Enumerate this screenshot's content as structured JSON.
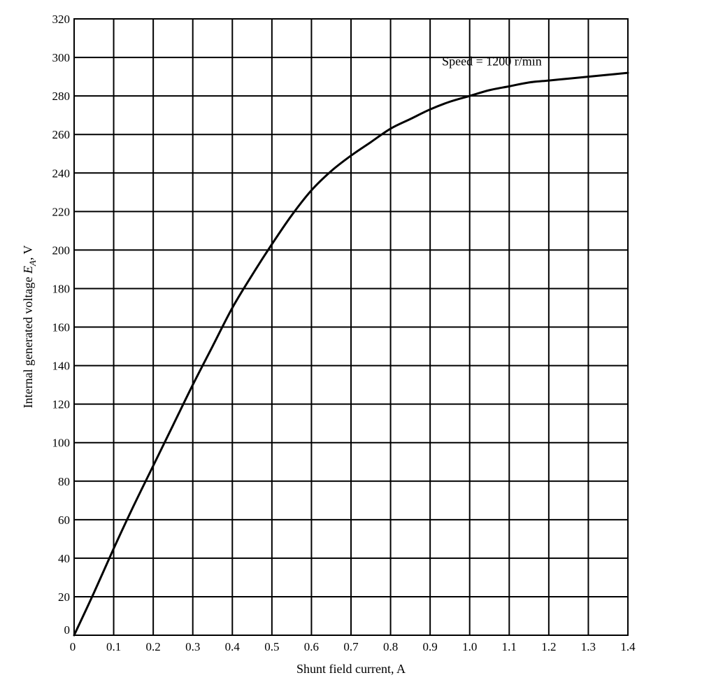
{
  "chart_data": {
    "type": "line",
    "xlabel": "Shunt field current, A",
    "ylabel": {
      "prefix": "Internal generated voltage ",
      "symbol": "E",
      "subscript": "A",
      "suffix": ", V"
    },
    "xlim": [
      0,
      1.4
    ],
    "ylim": [
      0,
      320
    ],
    "x_ticks": [
      "0",
      "0.1",
      "0.2",
      "0.3",
      "0.4",
      "0.5",
      "0.6",
      "0.7",
      "0.8",
      "0.9",
      "1.0",
      "1.1",
      "1.2",
      "1.3",
      "1.4"
    ],
    "y_ticks": [
      "0",
      "20",
      "40",
      "60",
      "80",
      "100",
      "120",
      "140",
      "160",
      "180",
      "200",
      "220",
      "240",
      "260",
      "280",
      "300",
      "320"
    ],
    "grid": true,
    "annotation": {
      "text": "Speed = 1200 r/min",
      "x": 0.93,
      "y": 298
    },
    "series": [
      {
        "x": [
          0,
          0.05,
          0.1,
          0.15,
          0.2,
          0.25,
          0.3,
          0.35,
          0.4,
          0.45,
          0.5,
          0.55,
          0.6,
          0.65,
          0.7,
          0.75,
          0.8,
          0.85,
          0.9,
          0.95,
          1.0,
          1.05,
          1.1,
          1.15,
          1.2,
          1.25,
          1.3,
          1.35,
          1.4
        ],
        "y": [
          0,
          22,
          45,
          67,
          88,
          109,
          130,
          150,
          170,
          187,
          203,
          218,
          231,
          241,
          249,
          256,
          263,
          268,
          273,
          277,
          280,
          283,
          285,
          287,
          288,
          289,
          290,
          291,
          292
        ]
      }
    ]
  }
}
